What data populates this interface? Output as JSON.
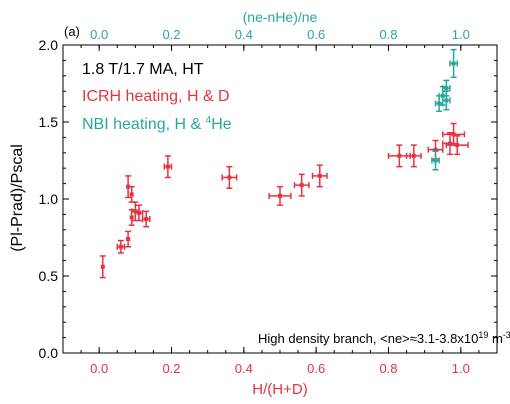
{
  "colors": {
    "icrh": "#e8323f",
    "nbi": "#2aa79b",
    "axis": "#000000",
    "text": "#000000"
  },
  "panel_label": "(a)",
  "annotations": {
    "line1": "1.8 T/1.7 MA, HT",
    "line2": "ICRH heating, H & D",
    "line3": "NBI heating, H & ",
    "line3_sup": "4",
    "line3_end": "He",
    "bottom_text": "High density branch, <ne>≈3.1-3.8x10",
    "bottom_sup": "19",
    "bottom_unit": " m",
    "bottom_unit_sup": "-3"
  },
  "chart_data": {
    "type": "scatter",
    "xlabel": "H/(H+D)",
    "ylabel": "(Pl-Prad)/Pscal",
    "top_xlabel": "(ne-nHe)/ne",
    "xlim": [
      -0.1,
      1.1
    ],
    "ylim": [
      0.0,
      2.0
    ],
    "x_ticks": [
      "0.0",
      "0.2",
      "0.4",
      "0.6",
      "0.8",
      "1.0"
    ],
    "y_ticks": [
      "0.0",
      "0.5",
      "1.0",
      "1.5",
      "2.0"
    ],
    "top_x_ticks": [
      "0.0",
      "0.2",
      "0.4",
      "0.6",
      "0.8",
      "1.0"
    ],
    "series": [
      {
        "name": "ICRH heating, H & D",
        "points": [
          {
            "x": 0.01,
            "y": 0.56,
            "xerr": 0.0,
            "yerr": 0.07
          },
          {
            "x": 0.06,
            "y": 0.69,
            "xerr": 0.01,
            "yerr": 0.04
          },
          {
            "x": 0.08,
            "y": 0.74,
            "xerr": 0.0,
            "yerr": 0.05
          },
          {
            "x": 0.08,
            "y": 1.08,
            "xerr": 0.0,
            "yerr": 0.07
          },
          {
            "x": 0.09,
            "y": 0.88,
            "xerr": 0.0,
            "yerr": 0.05
          },
          {
            "x": 0.09,
            "y": 1.03,
            "xerr": 0.0,
            "yerr": 0.05
          },
          {
            "x": 0.1,
            "y": 0.92,
            "xerr": 0.01,
            "yerr": 0.06
          },
          {
            "x": 0.11,
            "y": 0.91,
            "xerr": 0.01,
            "yerr": 0.05
          },
          {
            "x": 0.13,
            "y": 0.87,
            "xerr": 0.01,
            "yerr": 0.05
          },
          {
            "x": 0.19,
            "y": 1.21,
            "xerr": 0.01,
            "yerr": 0.07
          },
          {
            "x": 0.36,
            "y": 1.14,
            "xerr": 0.02,
            "yerr": 0.07
          },
          {
            "x": 0.5,
            "y": 1.02,
            "xerr": 0.03,
            "yerr": 0.06
          },
          {
            "x": 0.56,
            "y": 1.09,
            "xerr": 0.02,
            "yerr": 0.07
          },
          {
            "x": 0.61,
            "y": 1.15,
            "xerr": 0.02,
            "yerr": 0.07
          },
          {
            "x": 0.83,
            "y": 1.28,
            "xerr": 0.03,
            "yerr": 0.07
          },
          {
            "x": 0.87,
            "y": 1.28,
            "xerr": 0.02,
            "yerr": 0.07
          },
          {
            "x": 0.93,
            "y": 1.32,
            "xerr": 0.02,
            "yerr": 0.06
          },
          {
            "x": 0.97,
            "y": 1.36,
            "xerr": 0.02,
            "yerr": 0.07
          },
          {
            "x": 0.98,
            "y": 1.42,
            "xerr": 0.03,
            "yerr": 0.07
          },
          {
            "x": 0.99,
            "y": 1.35,
            "xerr": 0.03,
            "yerr": 0.06
          }
        ]
      },
      {
        "name": "NBI heating, H & 4He",
        "points": [
          {
            "x": 0.93,
            "y": 1.25,
            "xerr": 0.01,
            "yerr": 0.06
          },
          {
            "x": 0.94,
            "y": 1.62,
            "xerr": 0.01,
            "yerr": 0.05
          },
          {
            "x": 0.95,
            "y": 1.67,
            "xerr": 0.01,
            "yerr": 0.06
          },
          {
            "x": 0.96,
            "y": 1.72,
            "xerr": 0.01,
            "yerr": 0.05
          },
          {
            "x": 0.96,
            "y": 1.64,
            "xerr": 0.01,
            "yerr": 0.06
          },
          {
            "x": 0.98,
            "y": 1.88,
            "xerr": 0.01,
            "yerr": 0.09
          }
        ]
      }
    ]
  }
}
